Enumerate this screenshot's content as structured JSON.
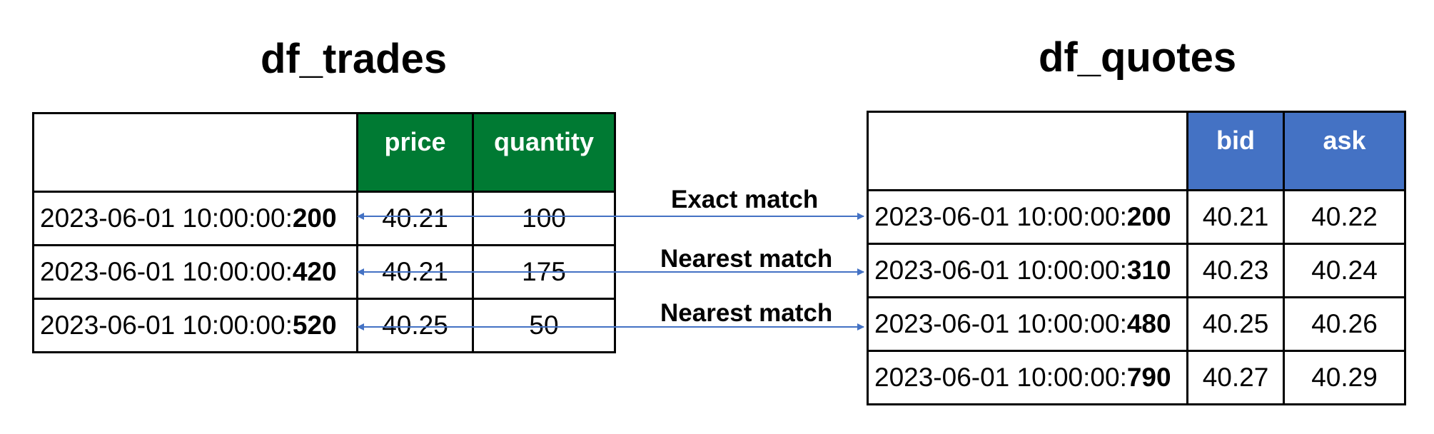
{
  "left": {
    "title": "df_trades",
    "columns": [
      "price",
      "quantity"
    ],
    "rows": [
      {
        "ts_prefix": "2023-06-01 10:00:00:",
        "ts_ms": "200",
        "v1": "40.21",
        "v2": "100"
      },
      {
        "ts_prefix": "2023-06-01 10:00:00:",
        "ts_ms": "420",
        "v1": "40.21",
        "v2": "175"
      },
      {
        "ts_prefix": "2023-06-01 10:00:00:",
        "ts_ms": "520",
        "v1": "40.25",
        "v2": "50"
      }
    ],
    "header_color": "#007a33"
  },
  "right": {
    "title": "df_quotes",
    "columns": [
      "bid",
      "ask"
    ],
    "rows": [
      {
        "ts_prefix": "2023-06-01 10:00:00:",
        "ts_ms": "200",
        "v1": "40.21",
        "v2": "40.22"
      },
      {
        "ts_prefix": "2023-06-01 10:00:00:",
        "ts_ms": "310",
        "v1": "40.23",
        "v2": "40.24"
      },
      {
        "ts_prefix": "2023-06-01 10:00:00:",
        "ts_ms": "480",
        "v1": "40.25",
        "v2": "40.26"
      },
      {
        "ts_prefix": "2023-06-01 10:00:00:",
        "ts_ms": "790",
        "v1": "40.27",
        "v2": "40.29"
      }
    ],
    "header_color": "#4472c4"
  },
  "links": [
    {
      "label": "Exact match",
      "from_row": 0,
      "to_row": 0
    },
    {
      "label": "Nearest match",
      "from_row": 1,
      "to_row": 1
    },
    {
      "label": "Nearest match",
      "from_row": 2,
      "to_row": 2
    }
  ],
  "arrow_color": "#4472c4"
}
